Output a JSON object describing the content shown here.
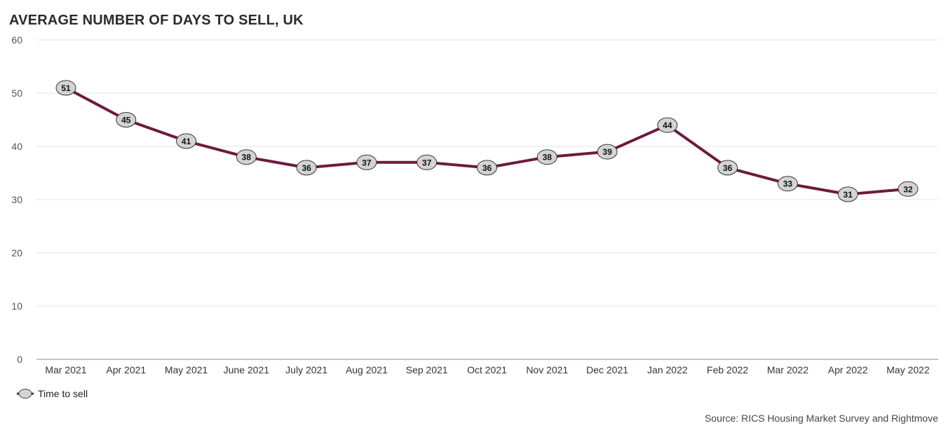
{
  "chart_data": {
    "type": "line",
    "title": "AVERAGE NUMBER OF DAYS TO SELL, UK",
    "xlabel": "",
    "ylabel": "",
    "ylim": [
      0,
      60
    ],
    "yticks": [
      0,
      10,
      20,
      30,
      40,
      50,
      60
    ],
    "grid": true,
    "legend_position": "bottom-left",
    "categories": [
      "Mar 2021",
      "Apr 2021",
      "May 2021",
      "June 2021",
      "July 2021",
      "Aug 2021",
      "Sep 2021",
      "Oct 2021",
      "Nov 2021",
      "Dec 2021",
      "Jan 2022",
      "Feb 2022",
      "Mar 2022",
      "Apr 2022",
      "May 2022"
    ],
    "series": [
      {
        "name": "Time to sell",
        "values": [
          51,
          45,
          41,
          38,
          36,
          37,
          37,
          36,
          38,
          39,
          44,
          36,
          33,
          31,
          32
        ],
        "color": "#6e1a3e",
        "marker_fill": "#d3d3d3"
      }
    ],
    "source": "Source: RICS Housing Market Survey and Rightmove"
  }
}
